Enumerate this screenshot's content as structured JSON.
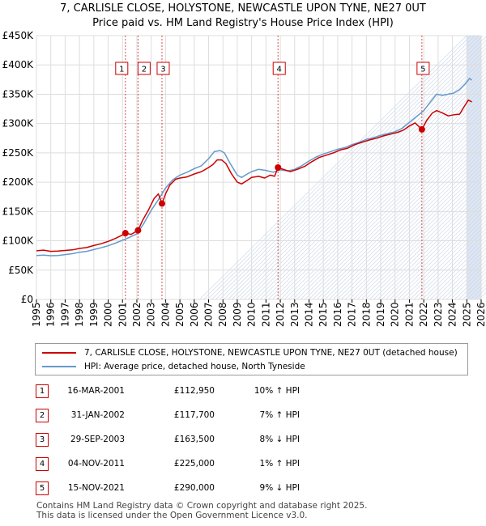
{
  "header": {
    "title": "7, CARLISLE CLOSE, HOLYSTONE, NEWCASTLE UPON TYNE, NE27 0UT",
    "subtitle": "Price paid vs. HM Land Registry's House Price Index (HPI)"
  },
  "colors": {
    "property": "#cc0000",
    "hpi": "#6699cc",
    "marker": "#cc0000",
    "forecast_band": "#dde6f2"
  },
  "chart_data": {
    "type": "line",
    "title": "7, CARLISLE CLOSE, HOLYSTONE, NEWCASTLE UPON TYNE, NE27 0UT",
    "xlim": [
      1995,
      2026
    ],
    "ylim": [
      0,
      450000
    ],
    "x_ticks": [
      "1995",
      "1996",
      "1997",
      "1998",
      "1999",
      "2000",
      "2001",
      "2002",
      "2003",
      "2004",
      "2005",
      "2006",
      "2007",
      "2008",
      "2009",
      "2010",
      "2011",
      "2012",
      "2013",
      "2014",
      "2015",
      "2016",
      "2017",
      "2018",
      "2019",
      "2020",
      "2021",
      "2022",
      "2023",
      "2024",
      "2025",
      "2026"
    ],
    "y_ticks": [
      {
        "value": 0,
        "label": "£0"
      },
      {
        "value": 50000,
        "label": "£50K"
      },
      {
        "value": 100000,
        "label": "£100K"
      },
      {
        "value": 150000,
        "label": "£150K"
      },
      {
        "value": 200000,
        "label": "£200K"
      },
      {
        "value": 250000,
        "label": "£250K"
      },
      {
        "value": 300000,
        "label": "£300K"
      },
      {
        "value": 350000,
        "label": "£350K"
      },
      {
        "value": 400000,
        "label": "£400K"
      },
      {
        "value": 450000,
        "label": "£450K"
      }
    ],
    "forecast_from": 2025.0,
    "series": [
      {
        "name": "7, CARLISLE CLOSE, HOLYSTONE, NEWCASTLE UPON TYNE, NE27 0UT (detached house)",
        "color": "#cc0000",
        "points": [
          [
            1995.0,
            83000
          ],
          [
            1995.5,
            84000
          ],
          [
            1996.0,
            82000
          ],
          [
            1996.5,
            82500
          ],
          [
            1997.0,
            83500
          ],
          [
            1997.5,
            84500
          ],
          [
            1998.0,
            87000
          ],
          [
            1998.5,
            88500
          ],
          [
            1999.0,
            92000
          ],
          [
            1999.5,
            95000
          ],
          [
            2000.0,
            99000
          ],
          [
            2000.5,
            104000
          ],
          [
            2001.0,
            110000
          ],
          [
            2001.2,
            112950
          ],
          [
            2001.6,
            111000
          ],
          [
            2002.08,
            117700
          ],
          [
            2002.4,
            135000
          ],
          [
            2002.8,
            152000
          ],
          [
            2003.2,
            172000
          ],
          [
            2003.5,
            180000
          ],
          [
            2003.75,
            163500
          ],
          [
            2004.0,
            180000
          ],
          [
            2004.3,
            195000
          ],
          [
            2004.7,
            205000
          ],
          [
            2005.0,
            207000
          ],
          [
            2005.5,
            209000
          ],
          [
            2006.0,
            214000
          ],
          [
            2006.5,
            218000
          ],
          [
            2007.0,
            225000
          ],
          [
            2007.3,
            230000
          ],
          [
            2007.6,
            238000
          ],
          [
            2007.9,
            238000
          ],
          [
            2008.2,
            232000
          ],
          [
            2008.6,
            214000
          ],
          [
            2009.0,
            200000
          ],
          [
            2009.3,
            197000
          ],
          [
            2009.7,
            203000
          ],
          [
            2010.0,
            208000
          ],
          [
            2010.5,
            210000
          ],
          [
            2010.9,
            207000
          ],
          [
            2011.3,
            212000
          ],
          [
            2011.6,
            210000
          ],
          [
            2011.84,
            225000
          ],
          [
            2012.2,
            222000
          ],
          [
            2012.7,
            218000
          ],
          [
            2013.2,
            222000
          ],
          [
            2013.7,
            227000
          ],
          [
            2014.2,
            235000
          ],
          [
            2014.7,
            242000
          ],
          [
            2015.2,
            246000
          ],
          [
            2015.7,
            250000
          ],
          [
            2016.2,
            255000
          ],
          [
            2016.7,
            258000
          ],
          [
            2017.2,
            264000
          ],
          [
            2017.7,
            268000
          ],
          [
            2018.2,
            272000
          ],
          [
            2018.7,
            275000
          ],
          [
            2019.2,
            279000
          ],
          [
            2019.7,
            282000
          ],
          [
            2020.2,
            285000
          ],
          [
            2020.6,
            289000
          ],
          [
            2021.0,
            296000
          ],
          [
            2021.4,
            301000
          ],
          [
            2021.87,
            290000
          ],
          [
            2022.2,
            305000
          ],
          [
            2022.6,
            318000
          ],
          [
            2022.9,
            322000
          ],
          [
            2023.3,
            318000
          ],
          [
            2023.7,
            313000
          ],
          [
            2024.1,
            315000
          ],
          [
            2024.5,
            316000
          ],
          [
            2024.8,
            328000
          ],
          [
            2025.1,
            340000
          ],
          [
            2025.35,
            337000
          ]
        ]
      },
      {
        "name": "HPI: Average price, detached house, North Tyneside",
        "color": "#6699cc",
        "points": [
          [
            1995.0,
            75000
          ],
          [
            1995.5,
            75500
          ],
          [
            1996.0,
            74500
          ],
          [
            1996.5,
            75000
          ],
          [
            1997.0,
            76500
          ],
          [
            1997.5,
            78000
          ],
          [
            1998.0,
            80500
          ],
          [
            1998.5,
            82000
          ],
          [
            1999.0,
            85000
          ],
          [
            1999.5,
            88000
          ],
          [
            2000.0,
            91500
          ],
          [
            2000.5,
            96000
          ],
          [
            2001.0,
            101000
          ],
          [
            2001.5,
            106000
          ],
          [
            2002.0,
            112000
          ],
          [
            2002.5,
            130000
          ],
          [
            2003.0,
            152000
          ],
          [
            2003.5,
            170000
          ],
          [
            2004.0,
            190000
          ],
          [
            2004.5,
            204000
          ],
          [
            2005.0,
            212000
          ],
          [
            2005.5,
            217000
          ],
          [
            2006.0,
            223000
          ],
          [
            2006.5,
            228000
          ],
          [
            2007.0,
            240000
          ],
          [
            2007.4,
            252000
          ],
          [
            2007.8,
            254000
          ],
          [
            2008.1,
            250000
          ],
          [
            2008.5,
            232000
          ],
          [
            2009.0,
            212000
          ],
          [
            2009.3,
            208000
          ],
          [
            2009.7,
            214000
          ],
          [
            2010.0,
            218000
          ],
          [
            2010.5,
            222000
          ],
          [
            2011.0,
            220000
          ],
          [
            2011.5,
            217000
          ],
          [
            2012.0,
            221000
          ],
          [
            2012.5,
            219000
          ],
          [
            2013.0,
            222000
          ],
          [
            2013.5,
            228000
          ],
          [
            2014.0,
            236000
          ],
          [
            2014.5,
            243000
          ],
          [
            2015.0,
            248000
          ],
          [
            2015.5,
            252000
          ],
          [
            2016.0,
            256000
          ],
          [
            2016.5,
            259000
          ],
          [
            2017.0,
            264000
          ],
          [
            2017.5,
            268000
          ],
          [
            2018.0,
            273000
          ],
          [
            2018.5,
            276000
          ],
          [
            2019.0,
            280000
          ],
          [
            2019.5,
            283000
          ],
          [
            2020.0,
            286000
          ],
          [
            2020.5,
            292000
          ],
          [
            2021.0,
            302000
          ],
          [
            2021.5,
            312000
          ],
          [
            2022.0,
            322000
          ],
          [
            2022.5,
            338000
          ],
          [
            2022.9,
            350000
          ],
          [
            2023.3,
            348000
          ],
          [
            2023.7,
            350000
          ],
          [
            2024.1,
            352000
          ],
          [
            2024.5,
            358000
          ],
          [
            2024.9,
            368000
          ],
          [
            2025.2,
            377000
          ],
          [
            2025.35,
            374000
          ]
        ]
      }
    ],
    "sales": [
      {
        "num": "1",
        "x": 2001.2,
        "price": 112950
      },
      {
        "num": "2",
        "x": 2002.08,
        "price": 117700
      },
      {
        "num": "3",
        "x": 2003.75,
        "price": 163500
      },
      {
        "num": "4",
        "x": 2011.84,
        "price": 225000
      },
      {
        "num": "5",
        "x": 2021.87,
        "price": 290000
      }
    ]
  },
  "legend": {
    "property_label": "7, CARLISLE CLOSE, HOLYSTONE, NEWCASTLE UPON TYNE, NE27 0UT (detached house)",
    "hpi_label": "HPI: Average price, detached house, North Tyneside"
  },
  "sales_table": [
    {
      "num": "1",
      "date": "16-MAR-2001",
      "price": "£112,950",
      "hpi": "10% ↑ HPI"
    },
    {
      "num": "2",
      "date": "31-JAN-2002",
      "price": "£117,700",
      "hpi": "7% ↑ HPI"
    },
    {
      "num": "3",
      "date": "29-SEP-2003",
      "price": "£163,500",
      "hpi": "8% ↓ HPI"
    },
    {
      "num": "4",
      "date": "04-NOV-2011",
      "price": "£225,000",
      "hpi": "1% ↑ HPI"
    },
    {
      "num": "5",
      "date": "15-NOV-2021",
      "price": "£290,000",
      "hpi": "9% ↓ HPI"
    }
  ],
  "footer": {
    "line1": "Contains HM Land Registry data © Crown copyright and database right 2025.",
    "line2": "This data is licensed under the Open Government Licence v3.0."
  }
}
